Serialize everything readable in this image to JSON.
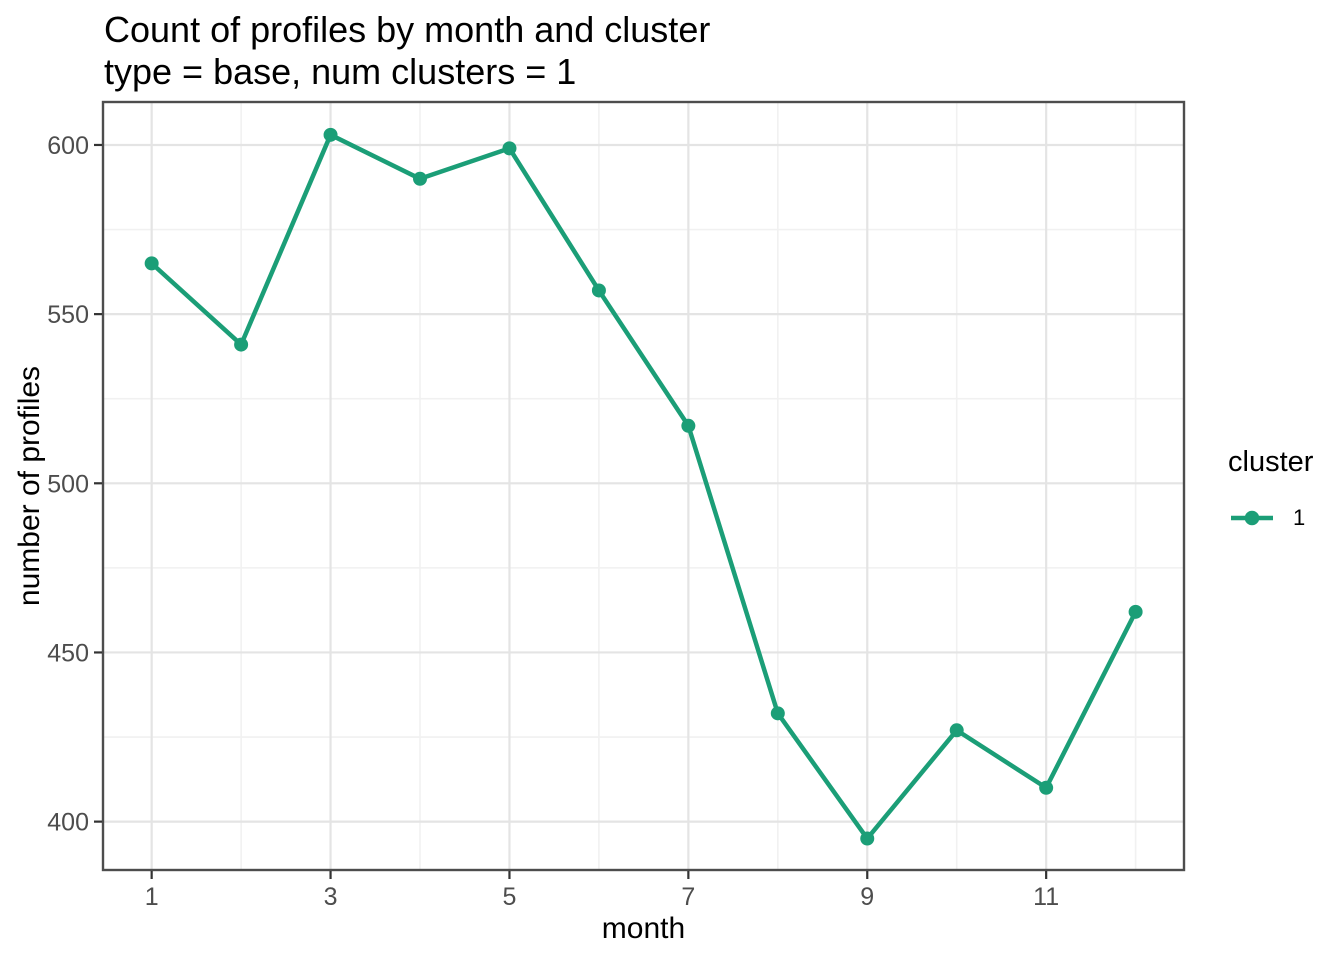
{
  "title": "Count of profiles by month and cluster",
  "subtitle": "type = base, num clusters = 1",
  "chart_data": {
    "type": "line",
    "title": "Count of profiles by month and cluster",
    "subtitle": "type = base, num clusters = 1",
    "xlabel": "month",
    "ylabel": "number of profiles",
    "x": [
      1,
      2,
      3,
      4,
      5,
      6,
      7,
      8,
      9,
      10,
      11,
      12
    ],
    "series": [
      {
        "name": "1",
        "color": "#1b9e77",
        "values": [
          565,
          541,
          603,
          590,
          599,
          557,
          517,
          432,
          395,
          427,
          410,
          462
        ]
      }
    ],
    "x_ticks": [
      1,
      3,
      5,
      7,
      9,
      11
    ],
    "x_minor_ticks": [
      2,
      4,
      6,
      8,
      10,
      12
    ],
    "y_ticks": [
      400,
      450,
      500,
      550,
      600
    ],
    "y_minor_ticks": [
      425,
      475,
      525,
      575
    ],
    "xlim": [
      0.456,
      12.541
    ],
    "ylim": [
      385.7,
      612.7
    ],
    "grid": true,
    "legend": {
      "title": "cluster",
      "position": "right",
      "entries": [
        {
          "label": "1",
          "color": "#1b9e77"
        }
      ]
    }
  },
  "colors": {
    "series": "#1b9e77",
    "grid_major": "#e4e4e4",
    "grid_minor": "#f1f1f1",
    "panel_border": "#4d4d4d",
    "tick_mark": "#333333",
    "tick_label": "#4d4d4d",
    "text": "#000000",
    "background": "#ffffff"
  }
}
